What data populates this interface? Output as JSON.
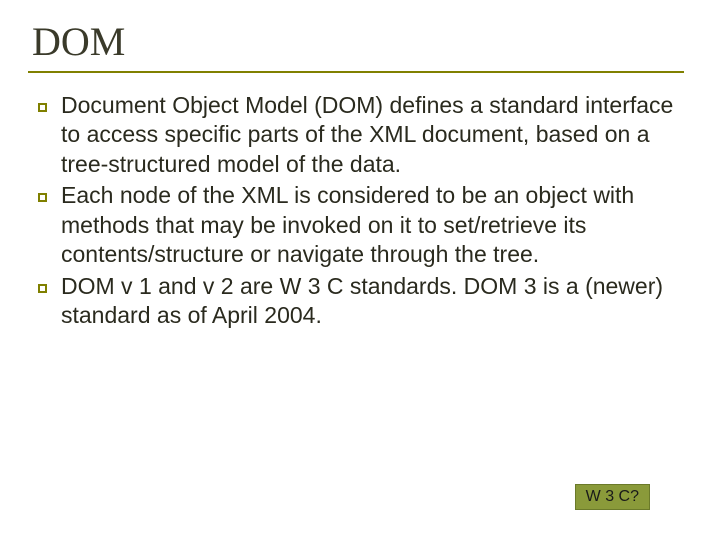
{
  "title": "DOM",
  "title_fontsize": 40,
  "title_color": "#3a3a2a",
  "underline_color": "#808000",
  "bullet_marker": {
    "size": 9,
    "border_width": 2,
    "border_color": "#808000",
    "fill": "transparent"
  },
  "body_fontsize": 23,
  "body_color": "#2a2a1e",
  "bullets": [
    "Document Object Model (DOM) defines a standard interface to access specific parts of the XML document, based on a tree-structured model of the data.",
    "Each node of the XML is considered to be an object with methods that may be invoked on it to set/retrieve its contents/structure or navigate through the tree.",
    "DOM v 1 and v 2 are W 3 C standards. DOM 3 is a (newer) standard as of April 2004."
  ],
  "badge": {
    "label": "W 3 C?",
    "background": "#8a9a3a",
    "border": "#6b7a2a",
    "text_color": "#1a1a1a",
    "fontsize": 16
  },
  "background_color": "#ffffff"
}
